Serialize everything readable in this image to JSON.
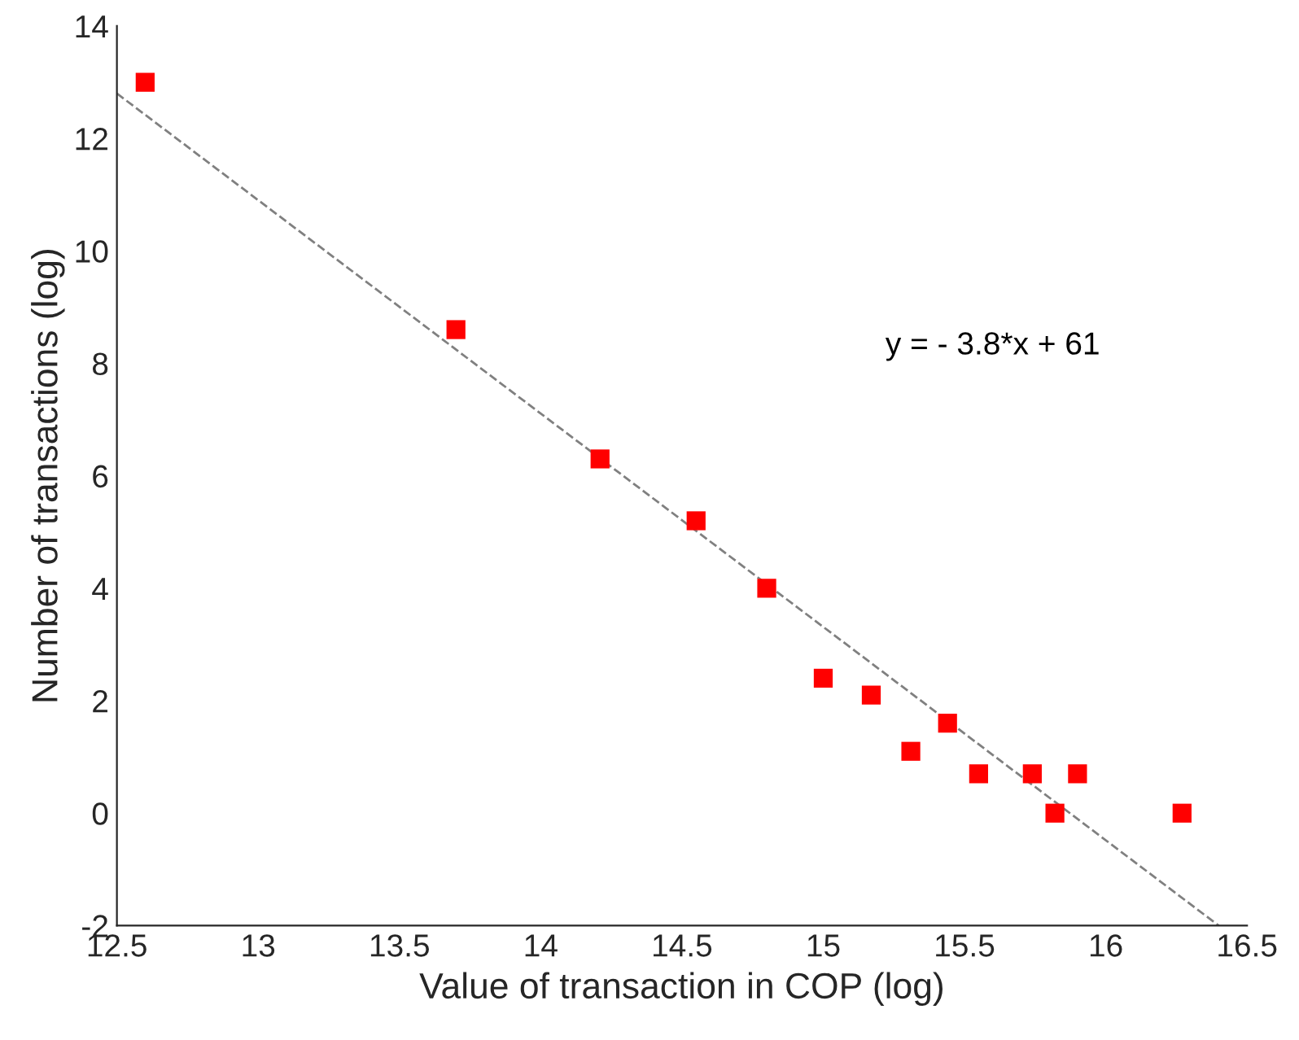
{
  "chart_data": {
    "type": "scatter",
    "xlabel": "Value of transaction in COP (log)",
    "ylabel": "Number of transactions (log)",
    "xlim": [
      12.5,
      16.5
    ],
    "xticks": [
      12.5,
      13,
      13.5,
      14,
      14.5,
      15,
      15.5,
      16,
      16.5
    ],
    "ylim": [
      -2,
      14
    ],
    "yticks": [
      -2,
      0,
      2,
      4,
      6,
      8,
      10,
      12,
      14
    ],
    "grid": false,
    "legend": false,
    "annotations": [
      "y = - 3.8*x + 61"
    ],
    "series": [
      {
        "color": "#ff0000",
        "marker": "square",
        "x": [
          12.6,
          13.7,
          14.21,
          14.55,
          14.8,
          15.0,
          15.17,
          15.31,
          15.44,
          15.55,
          15.74,
          15.82,
          15.9,
          16.27
        ],
        "values": [
          13.0,
          8.6,
          6.3,
          5.2,
          4.0,
          2.4,
          2.1,
          1.1,
          1.6,
          0.7,
          0.7,
          0.0,
          0.7,
          0.0
        ]
      },
      {
        "type": "line",
        "color": "#808080",
        "line_style": "dashed",
        "marker": "none",
        "x": [
          12.5,
          16.4
        ],
        "values": [
          12.8,
          -2.0
        ]
      }
    ]
  }
}
